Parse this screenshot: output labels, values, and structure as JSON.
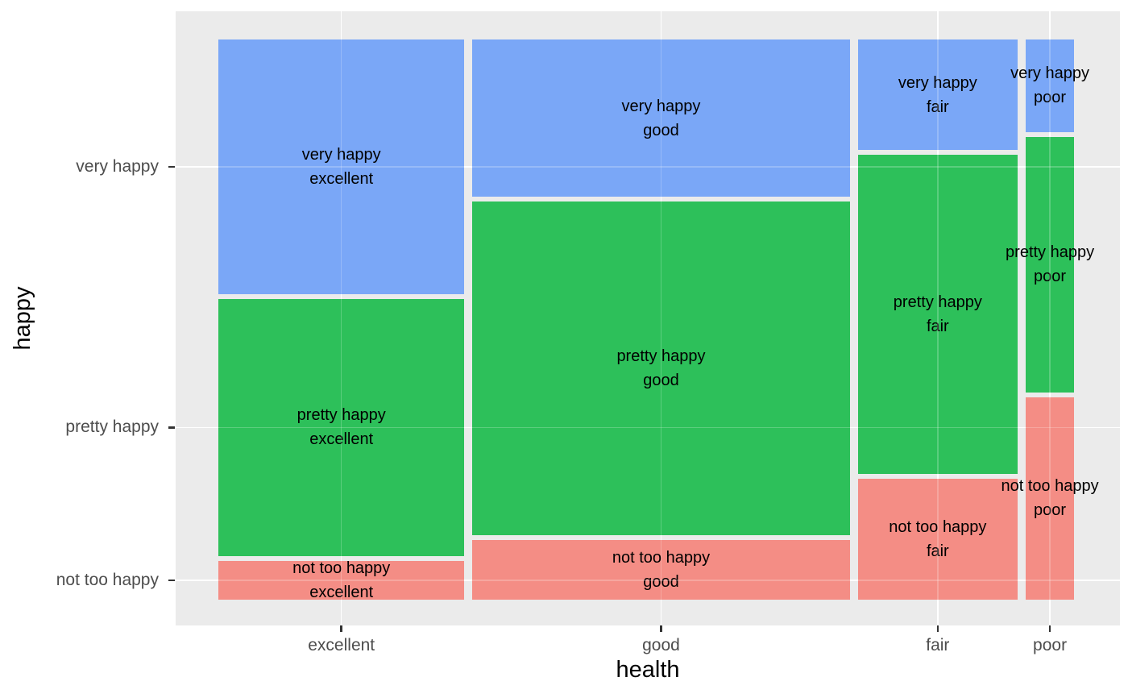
{
  "chart_data": {
    "type": "mosaic",
    "title": "",
    "xlabel": "health",
    "ylabel": "happy",
    "x_categories": [
      "excellent",
      "good",
      "fair",
      "poor"
    ],
    "y_categories": [
      "very happy",
      "pretty happy",
      "not too happy"
    ],
    "colors": [
      "#7AA7F7",
      "#2DC05A",
      "#F48D85"
    ],
    "x_shares": [
      0.2965,
      0.4545,
      0.1928,
      0.0581
    ],
    "cells": [
      {
        "x": "excellent",
        "y_shares": [
          0.462,
          0.468,
          0.07
        ]
      },
      {
        "x": "good",
        "y_shares": [
          0.286,
          0.606,
          0.108
        ]
      },
      {
        "x": "fair",
        "y_shares": [
          0.201,
          0.58,
          0.219
        ]
      },
      {
        "x": "poor",
        "y_shares": [
          0.168,
          0.464,
          0.368
        ]
      }
    ],
    "tile_labels": [
      [
        "very happy\nexcellent",
        "pretty happy\nexcellent",
        "not too happy\nexcellent"
      ],
      [
        "very happy\ngood",
        "pretty happy\ngood",
        "not too happy\ngood"
      ],
      [
        "very happy\nfair",
        "pretty happy\nfair",
        "not too happy\nfair"
      ],
      [
        "very happy\npoor",
        "pretty happy\npoor",
        "not too happy\npoor"
      ]
    ],
    "panel_background": "#EBEBEB",
    "grid_color": "#FFFFFF",
    "grid": "major",
    "legend": "none",
    "tick_color": "#333333",
    "axis_text_color": "#4D4D4D",
    "axis_title_color": "#000000",
    "tile_text_color": "#000000"
  }
}
